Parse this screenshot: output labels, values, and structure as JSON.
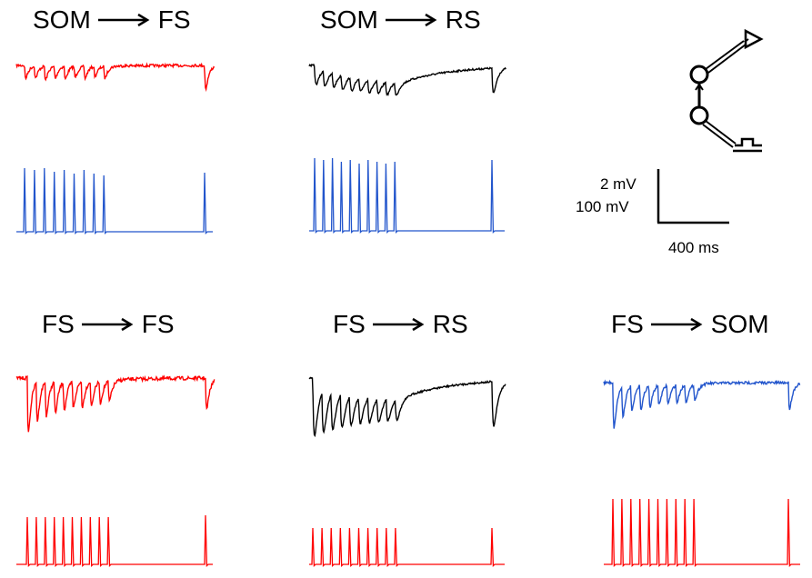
{
  "panels": [
    {
      "from": "SOM",
      "to": "FS",
      "post_color": "#ff0000",
      "pre_color": "#2255cc"
    },
    {
      "from": "SOM",
      "to": "RS",
      "post_color": "#000000",
      "pre_color": "#2255cc"
    },
    {
      "from": "FS",
      "to": "FS",
      "post_color": "#ff0000",
      "pre_color": "#ff0000"
    },
    {
      "from": "FS",
      "to": "RS",
      "post_color": "#000000",
      "pre_color": "#ff0000"
    },
    {
      "from": "FS",
      "to": "SOM",
      "post_color": "#2255cc",
      "pre_color": "#ff0000"
    }
  ],
  "scale_bar": {
    "voltage_post": "2 mV",
    "voltage_pre": "100 mV",
    "time": "400 ms"
  }
}
